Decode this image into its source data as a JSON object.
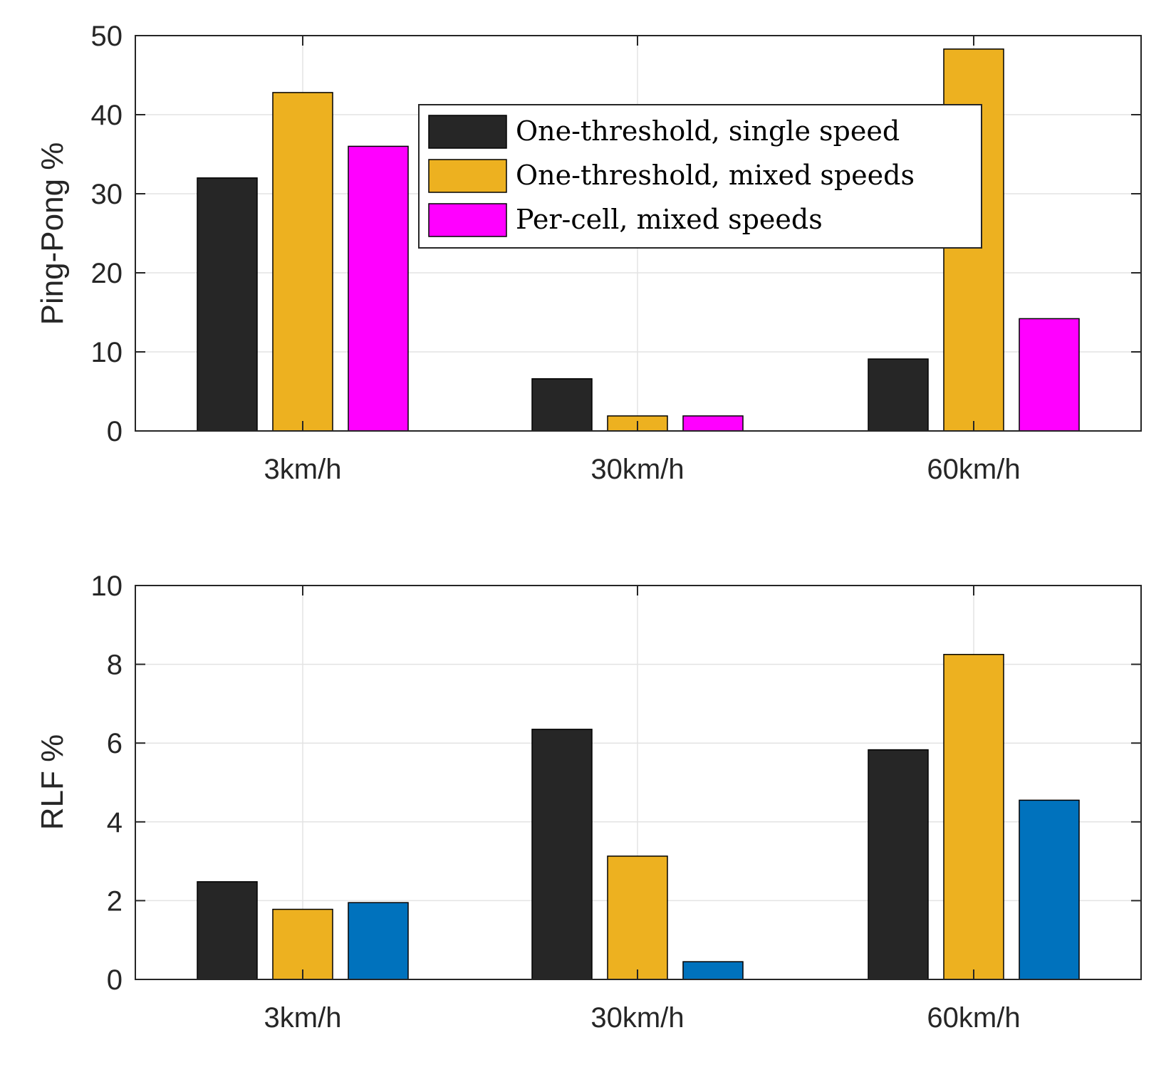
{
  "chart_data": [
    {
      "type": "bar",
      "categories": [
        "3km/h",
        "30km/h",
        "60km/h"
      ],
      "series": [
        {
          "name": "One-threshold, single speed",
          "color": "#262626",
          "values": [
            32.0,
            6.6,
            9.1
          ]
        },
        {
          "name": "One-threshold, mixed speeds",
          "color": "#EDB120",
          "values": [
            42.8,
            1.9,
            48.3
          ]
        },
        {
          "name": "Per-cell, mixed speeds",
          "color": "#FF00FF",
          "values": [
            36.0,
            1.9,
            14.2
          ]
        }
      ],
      "ylabel": "Ping-Pong %",
      "ylim": [
        0,
        50
      ],
      "yticks": [
        "0",
        "10",
        "20",
        "30",
        "40",
        "50"
      ],
      "grid": true,
      "legend": {
        "placement": "top-center"
      }
    },
    {
      "type": "bar",
      "categories": [
        "3km/h",
        "30km/h",
        "60km/h"
      ],
      "series": [
        {
          "color": "#262626",
          "values": [
            2.48,
            6.35,
            5.83
          ]
        },
        {
          "color": "#EDB120",
          "values": [
            1.78,
            3.13,
            8.25
          ]
        },
        {
          "color": "#0072BD",
          "values": [
            1.95,
            0.45,
            4.55
          ]
        }
      ],
      "ylabel": "RLF %",
      "ylim": [
        0,
        10
      ],
      "yticks": [
        "0",
        "2",
        "4",
        "6",
        "8",
        "10"
      ],
      "grid": true
    }
  ]
}
